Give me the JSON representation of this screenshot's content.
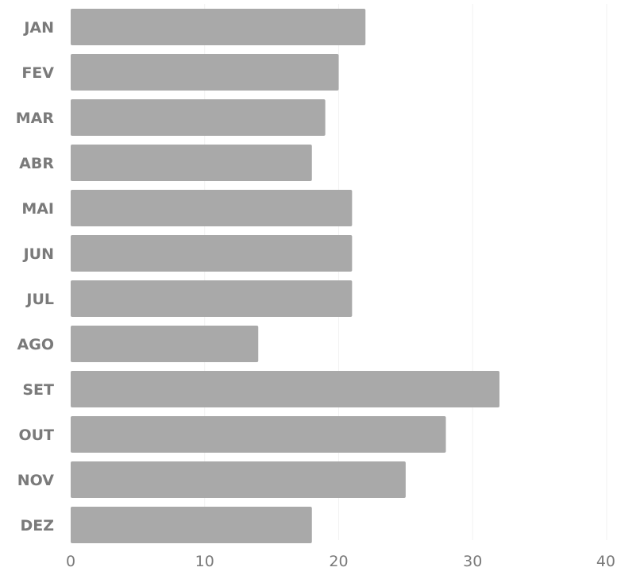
{
  "chart_data": {
    "type": "bar",
    "orientation": "horizontal",
    "categories": [
      "JAN",
      "FEV",
      "MAR",
      "ABR",
      "MAI",
      "JUN",
      "JUL",
      "AGO",
      "SET",
      "OUT",
      "NOV",
      "DEZ"
    ],
    "values": [
      22,
      20,
      19,
      18,
      21,
      21,
      21,
      14,
      32,
      28,
      25,
      18
    ],
    "xlim": [
      0,
      40
    ],
    "xticks": [
      0,
      10,
      20,
      30,
      40
    ],
    "grid": true,
    "bar_color": "#a9a9a9"
  }
}
